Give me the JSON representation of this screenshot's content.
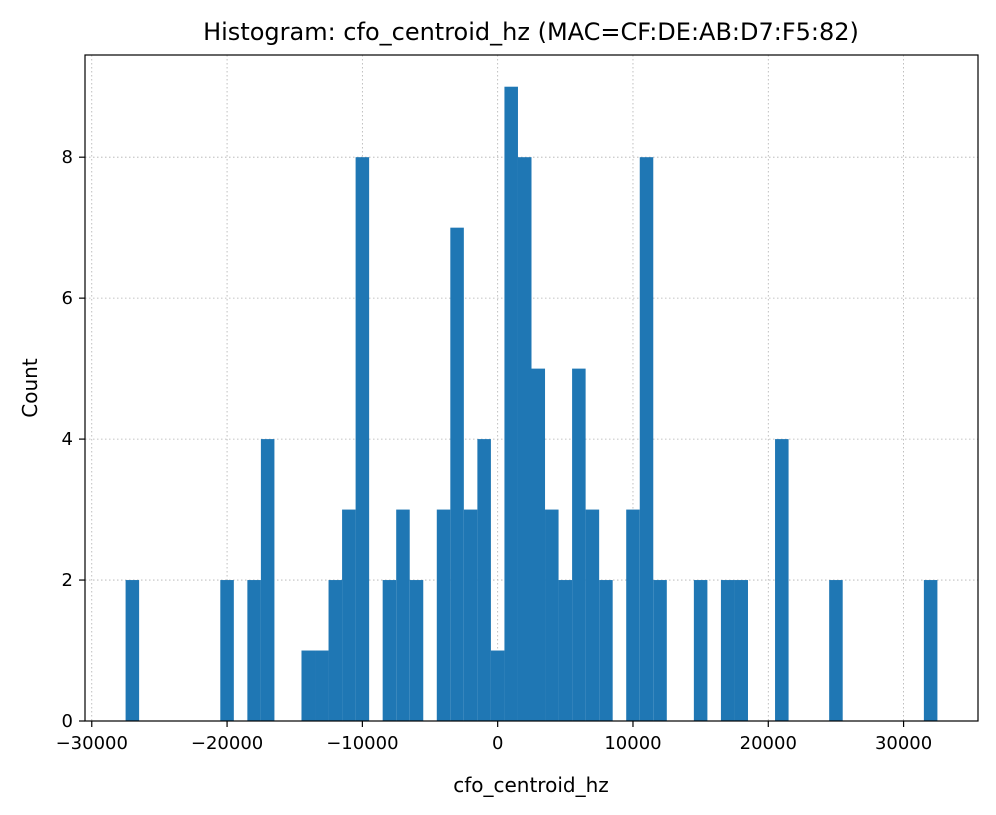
{
  "chart_data": {
    "type": "bar",
    "title": "Histogram: cfo_centroid_hz (MAC=CF:DE:AB:D7:F5:82)",
    "xlabel": "cfo_centroid_hz",
    "ylabel": "Count",
    "xlim": [
      -30500,
      35500
    ],
    "ylim": [
      0,
      9.45
    ],
    "xticks": [
      -30000,
      -20000,
      -10000,
      0,
      10000,
      20000,
      30000
    ],
    "xtick_labels": [
      "−30000",
      "−20000",
      "−10000",
      "0",
      "10000",
      "20000",
      "30000"
    ],
    "yticks": [
      0,
      2,
      4,
      6,
      8
    ],
    "ytick_labels": [
      "0",
      "2",
      "4",
      "6",
      "8"
    ],
    "grid": true,
    "bar_color": "#1f77b4",
    "bins": [
      {
        "x0": -27500,
        "x1": -26500,
        "count": 2
      },
      {
        "x0": -20500,
        "x1": -19500,
        "count": 2
      },
      {
        "x0": -18500,
        "x1": -17500,
        "count": 2
      },
      {
        "x0": -17500,
        "x1": -16500,
        "count": 4
      },
      {
        "x0": -14500,
        "x1": -13500,
        "count": 1
      },
      {
        "x0": -13500,
        "x1": -12500,
        "count": 1
      },
      {
        "x0": -12500,
        "x1": -11500,
        "count": 2
      },
      {
        "x0": -11500,
        "x1": -10500,
        "count": 3
      },
      {
        "x0": -10500,
        "x1": -9500,
        "count": 8
      },
      {
        "x0": -8500,
        "x1": -7500,
        "count": 2
      },
      {
        "x0": -7500,
        "x1": -6500,
        "count": 3
      },
      {
        "x0": -6500,
        "x1": -5500,
        "count": 2
      },
      {
        "x0": -4500,
        "x1": -3500,
        "count": 3
      },
      {
        "x0": -3500,
        "x1": -2500,
        "count": 7
      },
      {
        "x0": -2500,
        "x1": -1500,
        "count": 3
      },
      {
        "x0": -1500,
        "x1": -500,
        "count": 4
      },
      {
        "x0": -500,
        "x1": 500,
        "count": 1
      },
      {
        "x0": 500,
        "x1": 1500,
        "count": 9
      },
      {
        "x0": 1500,
        "x1": 2500,
        "count": 8
      },
      {
        "x0": 2500,
        "x1": 3500,
        "count": 5
      },
      {
        "x0": 3500,
        "x1": 4500,
        "count": 3
      },
      {
        "x0": 4500,
        "x1": 5500,
        "count": 2
      },
      {
        "x0": 5500,
        "x1": 6500,
        "count": 5
      },
      {
        "x0": 6500,
        "x1": 7500,
        "count": 3
      },
      {
        "x0": 7500,
        "x1": 8500,
        "count": 2
      },
      {
        "x0": 9500,
        "x1": 10500,
        "count": 3
      },
      {
        "x0": 10500,
        "x1": 11500,
        "count": 8
      },
      {
        "x0": 11500,
        "x1": 12500,
        "count": 2
      },
      {
        "x0": 14500,
        "x1": 15500,
        "count": 2
      },
      {
        "x0": 16500,
        "x1": 17500,
        "count": 2
      },
      {
        "x0": 17500,
        "x1": 18500,
        "count": 2
      },
      {
        "x0": 20500,
        "x1": 21500,
        "count": 4
      },
      {
        "x0": 24500,
        "x1": 25500,
        "count": 2
      },
      {
        "x0": 31500,
        "x1": 32500,
        "count": 2
      }
    ]
  }
}
